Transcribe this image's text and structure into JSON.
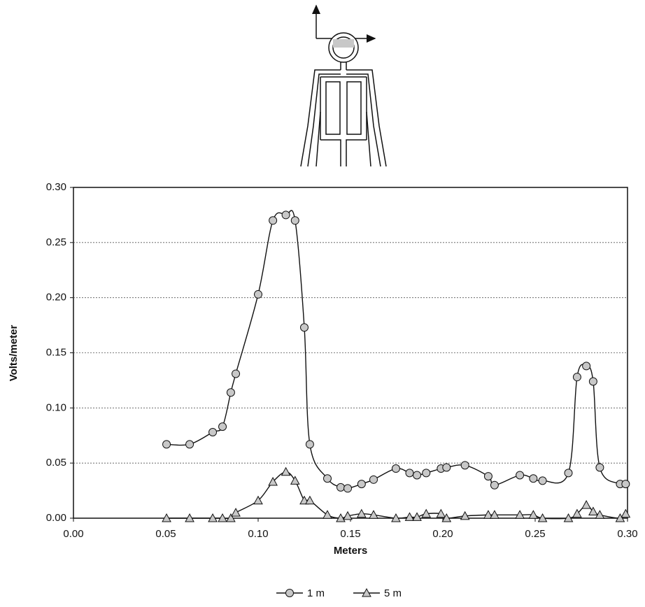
{
  "chart_data": {
    "type": "line",
    "xlabel": "Meters",
    "ylabel": "Volts/meter",
    "x": [
      0.0504,
      0.0629,
      0.0754,
      0.0807,
      0.0852,
      0.0879,
      0.1,
      0.108,
      0.115,
      0.12,
      0.125,
      0.128,
      0.1375,
      0.1447,
      0.1485,
      0.156,
      0.1625,
      0.1746,
      0.182,
      0.186,
      0.191,
      0.199,
      0.202,
      0.212,
      0.2246,
      0.228,
      0.2417,
      0.249,
      0.254,
      0.268,
      0.2727,
      0.2777,
      0.2814,
      0.285,
      0.296,
      0.299
    ],
    "series": [
      {
        "name": "1 m",
        "marker": "circle",
        "color": "#c8c8c8",
        "values": [
          0.067,
          0.067,
          0.078,
          0.083,
          0.114,
          0.131,
          0.203,
          0.27,
          0.275,
          0.27,
          0.173,
          0.067,
          0.036,
          0.028,
          0.027,
          0.031,
          0.035,
          0.045,
          0.041,
          0.039,
          0.041,
          0.045,
          0.046,
          0.048,
          0.038,
          0.03,
          0.039,
          0.036,
          0.034,
          0.041,
          0.128,
          0.138,
          0.124,
          0.046,
          0.031,
          0.031
        ]
      },
      {
        "name": "5 m",
        "marker": "triangle",
        "color": "#c8c8c8",
        "values": [
          0,
          0,
          0,
          0,
          0,
          0.005,
          0.016,
          0.033,
          0.042,
          0.034,
          0.016,
          0.016,
          0.003,
          0,
          0.002,
          0.004,
          0.003,
          0,
          0.001,
          0.001,
          0.004,
          0.004,
          0,
          0.002,
          0.003,
          0.003,
          0.003,
          0.003,
          0,
          0,
          0.004,
          0.012,
          0.006,
          0.003,
          0,
          0.004
        ]
      }
    ],
    "xlim": [
      0,
      0.3
    ],
    "xticks": [
      {
        "value": 0,
        "label": "0.00"
      },
      {
        "value": 0.05,
        "label": "0.05"
      },
      {
        "value": 0.1,
        "label": "0.10"
      },
      {
        "value": 0.15,
        "label": "0.15"
      },
      {
        "value": 0.2,
        "label": "0.20"
      },
      {
        "value": 0.25,
        "label": "0.25"
      },
      {
        "value": 0.3,
        "label": "0.30"
      }
    ],
    "ylim": [
      0,
      0.3
    ],
    "yticks": [
      {
        "value": 0,
        "label": "0.00"
      },
      {
        "value": 0.05,
        "label": "0.05"
      },
      {
        "value": 0.1,
        "label": "0.10"
      },
      {
        "value": 0.15,
        "label": "0.15"
      },
      {
        "value": 0.2,
        "label": "0.20"
      },
      {
        "value": 0.25,
        "label": "0.25"
      },
      {
        "value": 0.3,
        "label": "0.30"
      }
    ],
    "grid": true,
    "legend": "bottom"
  }
}
